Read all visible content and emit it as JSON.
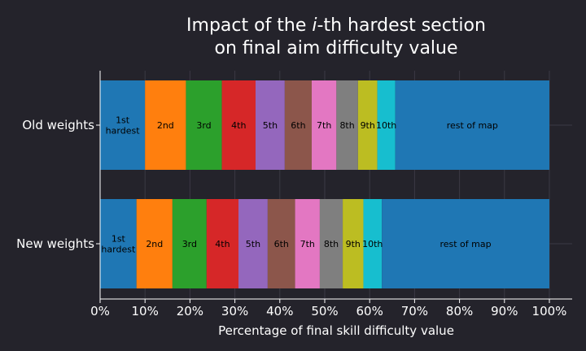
{
  "chart_data": {
    "type": "bar",
    "orientation": "horizontal",
    "stacked": true,
    "title_prefix": "Impact of the ",
    "title_italic": "i",
    "title_suffix": "-th hardest section",
    "title_line2": "on final aim difficulty value",
    "xlabel": "Percentage of final skill difficulty value",
    "xlim": [
      0,
      100
    ],
    "xticks": [
      "0%",
      "10%",
      "20%",
      "30%",
      "40%",
      "50%",
      "60%",
      "70%",
      "80%",
      "90%",
      "100%"
    ],
    "grid": true,
    "categories": [
      "Old weights",
      "New weights"
    ],
    "segments": [
      {
        "label": [
          "1st",
          "hardest"
        ],
        "color": "#1f77b4",
        "values": [
          10.0,
          8.1
        ]
      },
      {
        "label": [
          "2nd"
        ],
        "color": "#ff7f0e",
        "values": [
          9.1,
          8.0
        ]
      },
      {
        "label": [
          "3rd"
        ],
        "color": "#2ca02c",
        "values": [
          8.0,
          7.6
        ]
      },
      {
        "label": [
          "4th"
        ],
        "color": "#d62728",
        "values": [
          7.5,
          7.1
        ]
      },
      {
        "label": [
          "5th"
        ],
        "color": "#9467bd",
        "values": [
          6.5,
          6.5
        ]
      },
      {
        "label": [
          "6th"
        ],
        "color": "#8c564b",
        "values": [
          6.0,
          6.1
        ]
      },
      {
        "label": [
          "7th"
        ],
        "color": "#e377c2",
        "values": [
          5.5,
          5.5
        ]
      },
      {
        "label": [
          "8th"
        ],
        "color": "#7f7f7f",
        "values": [
          4.8,
          5.1
        ]
      },
      {
        "label": [
          "9th"
        ],
        "color": "#bcbd22",
        "values": [
          4.3,
          4.6
        ]
      },
      {
        "label": [
          "10th"
        ],
        "color": "#17becf",
        "values": [
          4.0,
          4.1
        ]
      },
      {
        "label": [
          "rest of map"
        ],
        "color": "#1f77b4",
        "values": [
          34.3,
          37.3
        ]
      }
    ]
  }
}
